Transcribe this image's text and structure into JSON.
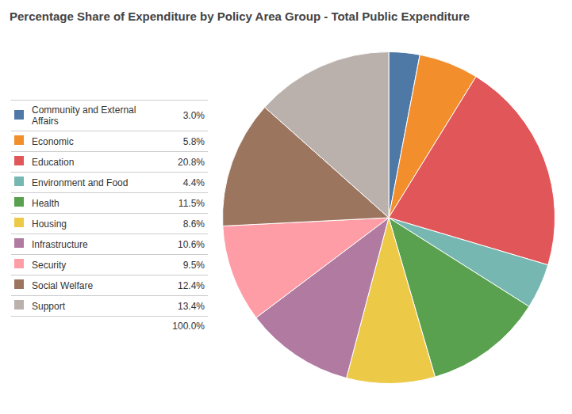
{
  "chart_data": {
    "type": "pie",
    "title": "Percentage Share of Expenditure by Policy Area Group - Total Public Expenditure",
    "categories": [
      "Community and  External\nAffairs",
      "Economic",
      "Education",
      "Environment and Food",
      "Health",
      "Housing",
      "Infrastructure",
      "Security",
      "Social Welfare",
      "Support"
    ],
    "values": [
      3.0,
      5.8,
      20.8,
      4.4,
      11.5,
      8.6,
      10.6,
      9.5,
      12.4,
      13.4
    ],
    "value_labels": [
      "3.0%",
      "5.8%",
      "20.8%",
      "4.4%",
      "11.5%",
      "8.6%",
      "10.6%",
      "9.5%",
      "12.4%",
      "13.4%"
    ],
    "annotations": [
      "100.0%"
    ],
    "colors": [
      "#4e79a7",
      "#f28e2b",
      "#e15759",
      "#76b7b2",
      "#59a14f",
      "#edc948",
      "#b07aa1",
      "#ff9da7",
      "#9c755f",
      "#bab0ac"
    ],
    "legend": "left"
  }
}
